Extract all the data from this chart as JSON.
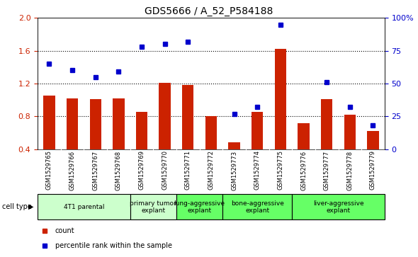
{
  "title": "GDS5666 / A_52_P584188",
  "samples": [
    "GSM1529765",
    "GSM1529766",
    "GSM1529767",
    "GSM1529768",
    "GSM1529769",
    "GSM1529770",
    "GSM1529771",
    "GSM1529772",
    "GSM1529773",
    "GSM1529774",
    "GSM1529775",
    "GSM1529776",
    "GSM1529777",
    "GSM1529778",
    "GSM1529779"
  ],
  "counts": [
    1.05,
    1.02,
    1.01,
    1.02,
    0.85,
    1.21,
    1.18,
    0.8,
    0.48,
    0.85,
    1.62,
    0.72,
    1.01,
    0.82,
    0.62
  ],
  "percentiles": [
    65,
    60,
    55,
    59,
    78,
    80,
    82,
    null,
    27,
    32,
    95,
    null,
    51,
    32,
    18
  ],
  "ylim_left": [
    0.4,
    2.0
  ],
  "ylim_right": [
    0,
    100
  ],
  "yticks_left": [
    0.4,
    0.8,
    1.2,
    1.6,
    2.0
  ],
  "yticks_right": [
    0,
    25,
    50,
    75,
    100
  ],
  "cell_groups": [
    {
      "label": "4T1 parental",
      "start": 0,
      "end": 3,
      "color": "#ccffcc"
    },
    {
      "label": "primary tumor\nexplant",
      "start": 4,
      "end": 5,
      "color": "#ccffcc"
    },
    {
      "label": "lung-aggressive\nexplant",
      "start": 6,
      "end": 7,
      "color": "#66ff66"
    },
    {
      "label": "bone-aggressive\nexplant",
      "start": 8,
      "end": 10,
      "color": "#66ff66"
    },
    {
      "label": "liver-aggressive\nexplant",
      "start": 11,
      "end": 14,
      "color": "#66ff66"
    }
  ],
  "bar_color": "#cc2200",
  "dot_color": "#0000cc",
  "bar_width": 0.5,
  "sample_bg": "#cccccc",
  "left_color": "#cc2200",
  "right_color": "#0000cc"
}
